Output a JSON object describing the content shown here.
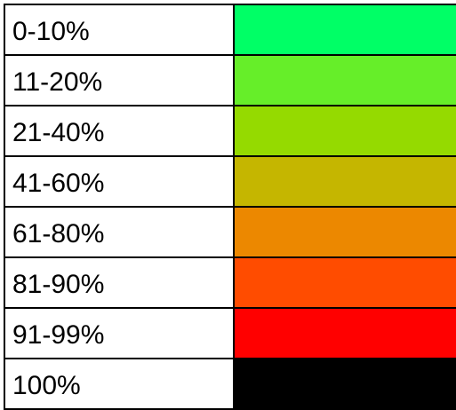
{
  "legend": {
    "rows": [
      {
        "label": "0-10%",
        "color": "#00FF66"
      },
      {
        "label": "11-20%",
        "color": "#66EE29"
      },
      {
        "label": "21-40%",
        "color": "#95DA00"
      },
      {
        "label": "41-60%",
        "color": "#C5B600"
      },
      {
        "label": "61-80%",
        "color": "#EC8800"
      },
      {
        "label": "81-90%",
        "color": "#FF4C00"
      },
      {
        "label": "91-99%",
        "color": "#FF0000"
      },
      {
        "label": "100%",
        "color": "#000000"
      }
    ]
  }
}
